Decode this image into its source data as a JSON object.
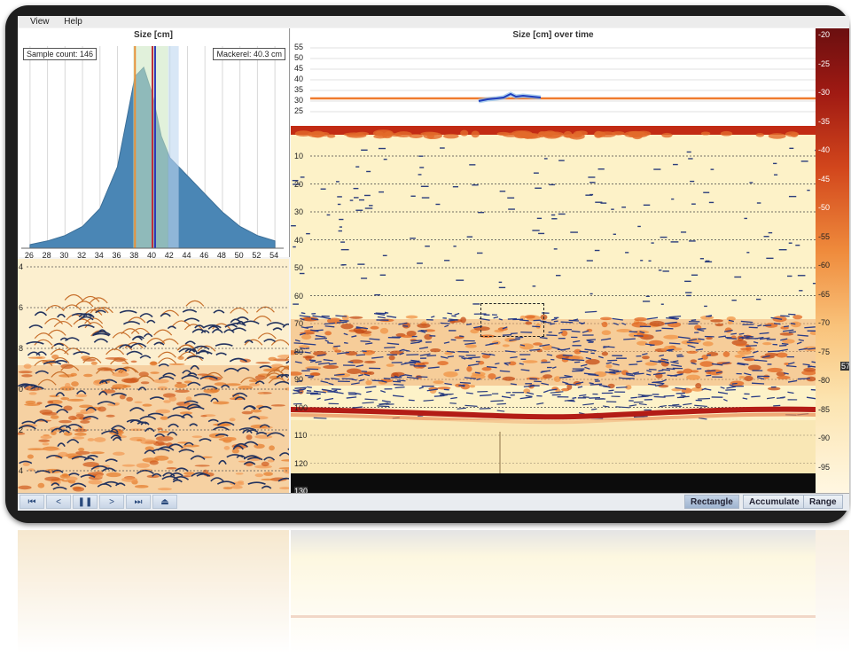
{
  "menu": {
    "items": [
      "View",
      "Help"
    ]
  },
  "histogram": {
    "title": "Size [cm]",
    "sample_count": "Sample count: 146",
    "species_label": "Mackerel: 40.3 cm",
    "x_ticks": [
      "26",
      "28",
      "30",
      "32",
      "34",
      "36",
      "38",
      "40",
      "42",
      "44",
      "46",
      "48",
      "50",
      "52",
      "54"
    ]
  },
  "time_panel": {
    "title": "Size [cm] over time",
    "y_ticks": [
      "55",
      "50",
      "45",
      "40",
      "35",
      "30",
      "25"
    ]
  },
  "echogram_right": {
    "depth_ticks": [
      "10",
      "20",
      "30",
      "40",
      "50",
      "60",
      "70",
      "80",
      "90",
      "100",
      "110",
      "120",
      "130"
    ]
  },
  "echogram_left": {
    "depth_ticks": [
      "4",
      "6",
      "8",
      "0",
      "2",
      "4"
    ]
  },
  "color_scale": {
    "ticks": [
      "-20",
      "-25",
      "-30",
      "-35",
      "-40",
      "-45",
      "-50",
      "-55",
      "-60",
      "-65",
      "-70",
      "-75",
      "-80",
      "-85",
      "-90",
      "-95"
    ],
    "marker": "57"
  },
  "playback": {
    "buttons": [
      "⏮",
      "<",
      "❚❚",
      ">",
      "⏭",
      "⏏"
    ]
  },
  "tools": {
    "rectangle": "Rectangle",
    "accumulate": "Accumulate",
    "range": "Range"
  },
  "colors": {
    "frame": "#1e1e1e",
    "histogram_fill": "#4a86b5",
    "echogram_bg": "#fdf2c8",
    "track_line": "#ef7b2e",
    "size_line": "#1f3fc0"
  },
  "chart_data": {
    "type": "area",
    "title": "Size [cm]",
    "xlabel": "",
    "ylabel": "",
    "x": [
      26,
      28,
      30,
      32,
      34,
      36,
      37,
      38,
      39,
      40,
      41,
      42,
      44,
      46,
      48,
      50,
      52,
      54
    ],
    "values": [
      0.02,
      0.04,
      0.07,
      0.12,
      0.22,
      0.45,
      0.7,
      0.95,
      1.0,
      0.85,
      0.62,
      0.5,
      0.4,
      0.3,
      0.2,
      0.12,
      0.07,
      0.04
    ],
    "xlim": [
      25,
      55
    ]
  }
}
